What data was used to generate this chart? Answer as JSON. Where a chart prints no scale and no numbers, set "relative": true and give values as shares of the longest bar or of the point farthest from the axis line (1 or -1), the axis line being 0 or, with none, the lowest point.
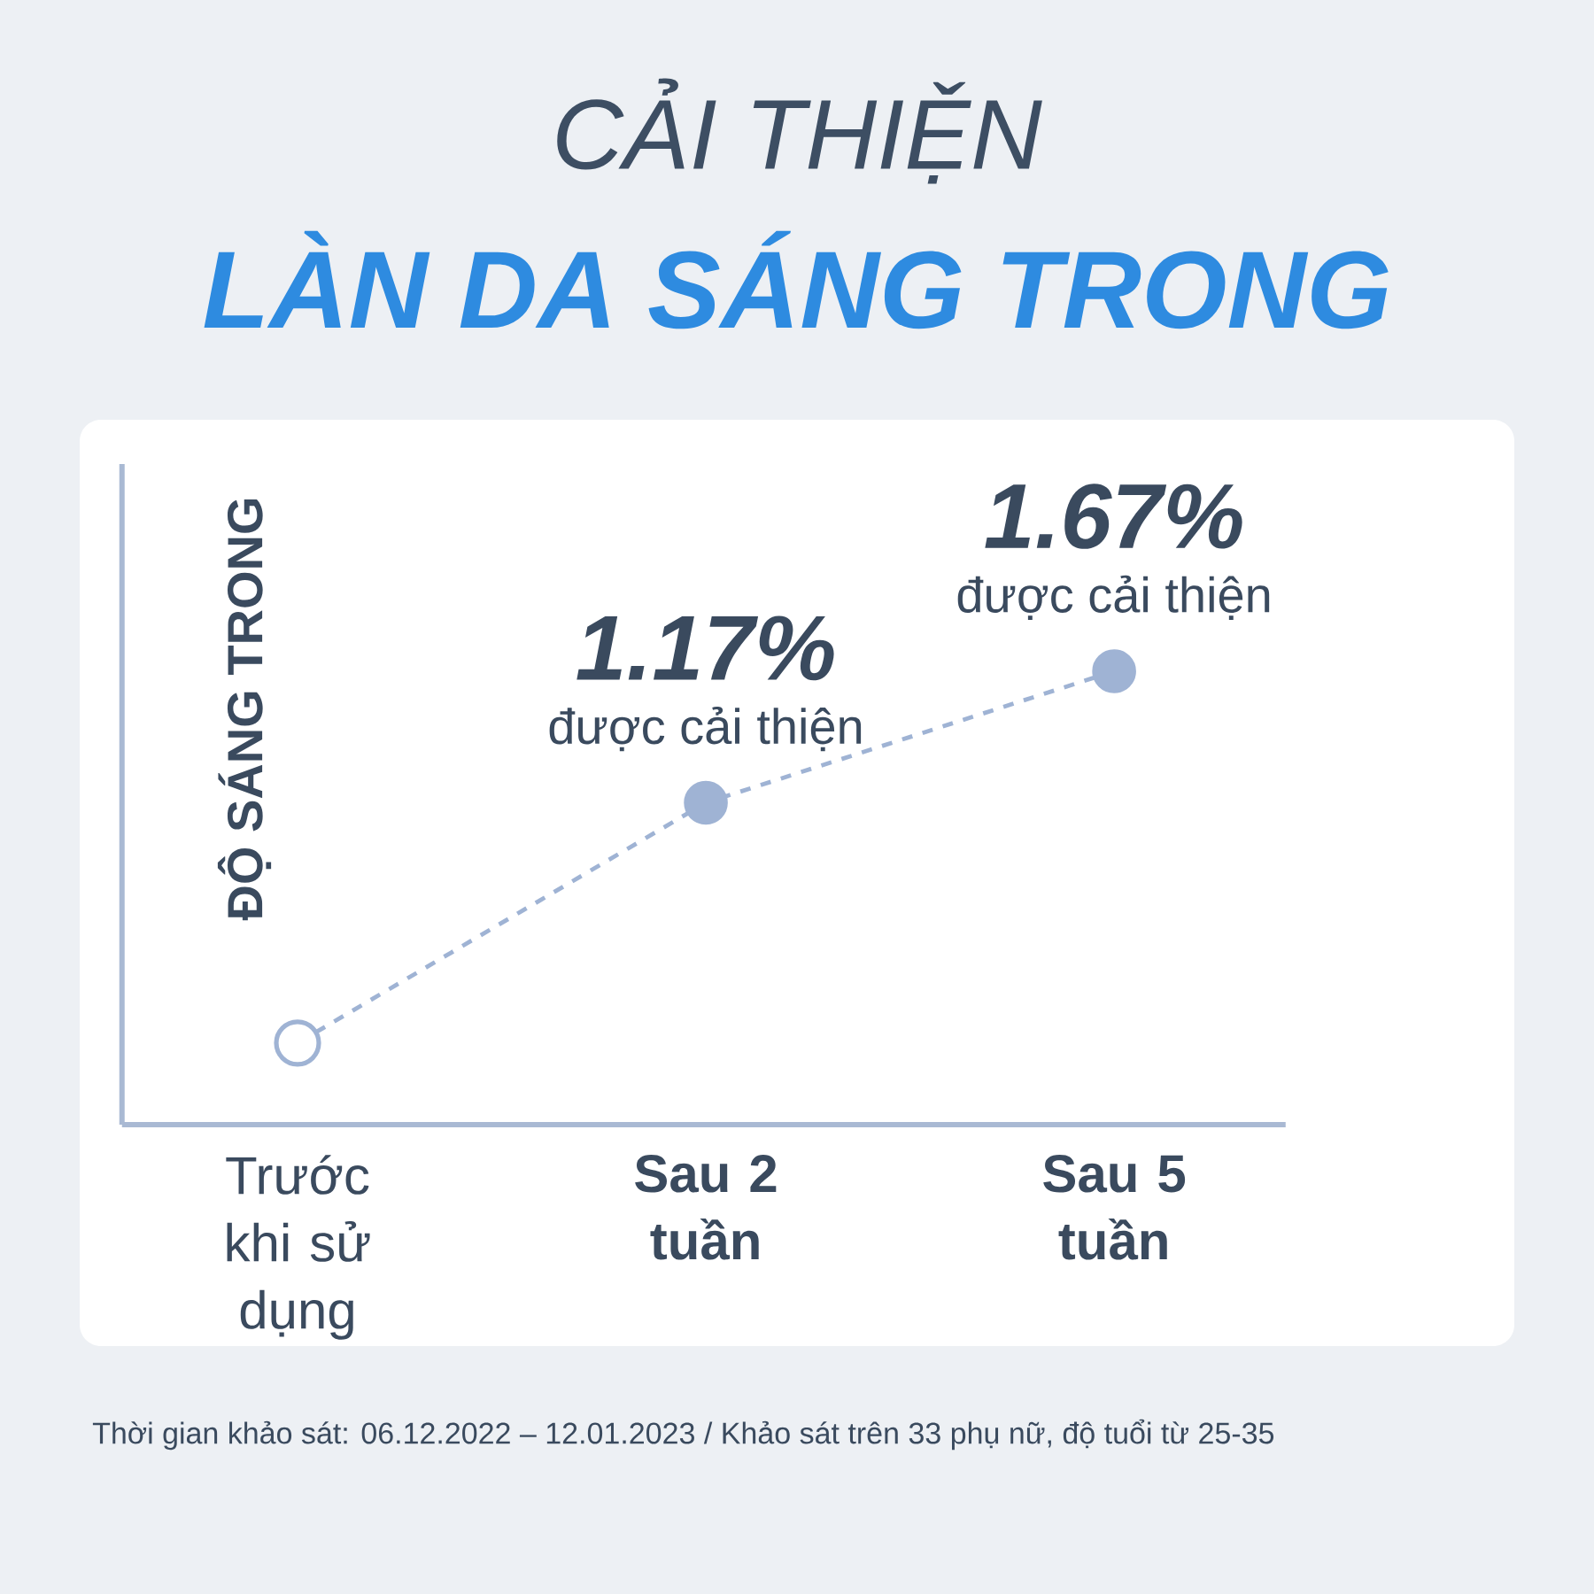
{
  "chart_data": {
    "type": "line",
    "title": "CẢI THIỆN",
    "subtitle": "LÀN DA SÁNG TRONG",
    "ylabel": "ĐỘ SÁNG TRONG",
    "categories": [
      "Trước khi sử dụng",
      "Sau 2 tuần",
      "Sau 5 tuần"
    ],
    "series": [
      {
        "color": "#9fb3d4",
        "values": [
          0.18,
          0.71,
          1
        ]
      }
    ],
    "relative": true,
    "marker": "circle",
    "line_style": "dashed",
    "annotations": [
      {
        "text": "1.17%",
        "x": "Sau 2 tuần",
        "y": 0.71
      },
      {
        "text": "được cải thiện",
        "x": "Sau 2 tuần",
        "y": 0.71
      },
      {
        "text": "1.67%",
        "x": "Sau 5 tuần",
        "y": 1
      },
      {
        "text": "được cải thiện",
        "x": "Sau 5 tuần",
        "y": 1
      },
      "Thời gian khảo sát: 06.12.2022 – 12.01.2023 / Khảo sát trên 33 phụ nữ, độ tuổi từ 25-35"
    ]
  }
}
